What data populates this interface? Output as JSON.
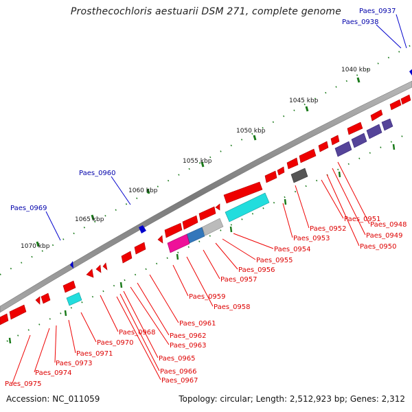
{
  "title": "Prosthecochloris aestuarii DSM 271, complete genome",
  "footer": {
    "accession": "Accession: NC_011059",
    "topology": "Topology: circular; Length: 2,512,923 bp; Genes: 2,312"
  },
  "ticks": [
    "1040 kbp",
    "1045 kbp",
    "1050 kbp",
    "1055 kbp",
    "1060 kbp",
    "1065 kbp",
    "1070 kbp"
  ],
  "genes": [
    {
      "name": "Paes_0937",
      "strand": "reverse",
      "color": "#0000cc"
    },
    {
      "name": "Paes_0938",
      "strand": "reverse",
      "color": "#0000cc"
    },
    {
      "name": "Paes_0948",
      "strand": "forward",
      "color": "#ee0000"
    },
    {
      "name": "Paes_0949",
      "strand": "forward",
      "color": "#ee0000"
    },
    {
      "name": "Paes_0950",
      "strand": "forward",
      "color": "#ee0000"
    },
    {
      "name": "Paes_0951",
      "strand": "forward",
      "color": "#ee0000"
    },
    {
      "name": "Paes_0952",
      "strand": "forward",
      "color": "#ee0000"
    },
    {
      "name": "Paes_0953",
      "strand": "forward",
      "color": "#ee0000"
    },
    {
      "name": "Paes_0954",
      "strand": "forward",
      "color": "#ee0000"
    },
    {
      "name": "Paes_0955",
      "strand": "forward",
      "color": "#ee0000"
    },
    {
      "name": "Paes_0956",
      "strand": "forward",
      "color": "#ee0000"
    },
    {
      "name": "Paes_0957",
      "strand": "forward",
      "color": "#ee0000"
    },
    {
      "name": "Paes_0958",
      "strand": "forward",
      "color": "#ee0000"
    },
    {
      "name": "Paes_0959",
      "strand": "forward",
      "color": "#ee0000"
    },
    {
      "name": "Paes_0960",
      "strand": "reverse",
      "color": "#0000cc"
    },
    {
      "name": "Paes_0961",
      "strand": "forward",
      "color": "#ee0000"
    },
    {
      "name": "Paes_0962",
      "strand": "forward",
      "color": "#ee0000"
    },
    {
      "name": "Paes_0963",
      "strand": "forward",
      "color": "#ee0000"
    },
    {
      "name": "Paes_0965",
      "strand": "forward",
      "color": "#ee0000"
    },
    {
      "name": "Paes_0966",
      "strand": "forward",
      "color": "#ee0000"
    },
    {
      "name": "Paes_0967",
      "strand": "forward",
      "color": "#ee0000"
    },
    {
      "name": "Paes_0968",
      "strand": "forward",
      "color": "#ee0000"
    },
    {
      "name": "Paes_0969",
      "strand": "reverse",
      "color": "#0000cc"
    },
    {
      "name": "Paes_0970",
      "strand": "forward",
      "color": "#ee0000"
    },
    {
      "name": "Paes_0971",
      "strand": "forward",
      "color": "#ee0000"
    },
    {
      "name": "Paes_0973",
      "strand": "forward",
      "color": "#ee0000"
    },
    {
      "name": "Paes_0974",
      "strand": "forward",
      "color": "#ee0000"
    },
    {
      "name": "Paes_0975",
      "strand": "forward",
      "color": "#ee0000"
    }
  ],
  "colors": {
    "backbone": "#8c8c8c",
    "forward_gene": "#ee0000",
    "reverse_gene": "#0000cc",
    "forward_label": "#dd0000",
    "reverse_label": "#0000aa",
    "tick": "#1a7a1a",
    "cyan_orf": "#22dddd",
    "magenta_orf": "#ee1199",
    "steel_orf": "#3377bb",
    "grey_orf": "#bbbbbb",
    "dark_grey_orf": "#555555",
    "purple_orf": "#554499"
  }
}
